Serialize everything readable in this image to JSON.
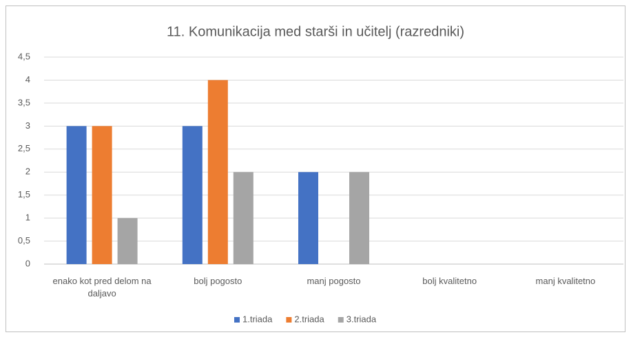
{
  "chart_data": {
    "type": "bar",
    "title": "11. Komunikacija med starši in učitelj (razredniki)",
    "categories": [
      "enako kot pred delom na daljavo",
      "bolj pogosto",
      "manj pogosto",
      "bolj kvalitetno",
      "manj kvalitetno"
    ],
    "series": [
      {
        "name": "1.triada",
        "color": "#4472c4",
        "values": [
          3,
          3,
          2,
          0,
          0
        ]
      },
      {
        "name": "2.triada",
        "color": "#ed7d31",
        "values": [
          3,
          4,
          0,
          0,
          0
        ]
      },
      {
        "name": "3.triada",
        "color": "#a5a5a5",
        "values": [
          1,
          2,
          2,
          0,
          0
        ]
      }
    ],
    "ylim": [
      0,
      4.5
    ],
    "yticks": [
      0,
      {
        "value": 0.5,
        "label": "0,5"
      },
      1,
      {
        "value": 1.5,
        "label": "1,5"
      },
      2,
      {
        "value": 2.5,
        "label": "2,5"
      },
      3,
      {
        "value": 3.5,
        "label": "3,5"
      },
      4,
      {
        "value": 4.5,
        "label": "4,5"
      }
    ],
    "grid": true,
    "legend": "bottom"
  }
}
